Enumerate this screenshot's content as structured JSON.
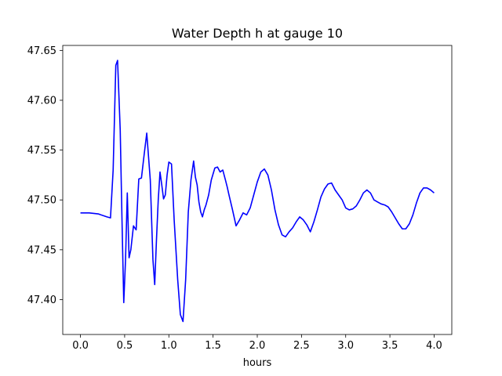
{
  "chart_data": {
    "type": "line",
    "title": "Water Depth h at gauge 10",
    "xlabel": "hours",
    "ylabel": "",
    "xlim": [
      -0.2,
      4.2
    ],
    "ylim": [
      47.365,
      47.655
    ],
    "xticks": [
      0.0,
      0.5,
      1.0,
      1.5,
      2.0,
      2.5,
      3.0,
      3.5,
      4.0
    ],
    "xtick_labels": [
      "0.0",
      "0.5",
      "1.0",
      "1.5",
      "2.0",
      "2.5",
      "3.0",
      "3.5",
      "4.0"
    ],
    "yticks": [
      47.4,
      47.45,
      47.5,
      47.55,
      47.6,
      47.65
    ],
    "ytick_labels": [
      "47.40",
      "47.45",
      "47.50",
      "47.55",
      "47.60",
      "47.65"
    ],
    "grid": false,
    "series": [
      {
        "color": "#0000ff",
        "x": [
          0.0,
          0.1,
          0.2,
          0.3,
          0.34,
          0.37,
          0.4,
          0.42,
          0.45,
          0.47,
          0.49,
          0.51,
          0.53,
          0.55,
          0.57,
          0.6,
          0.63,
          0.66,
          0.69,
          0.72,
          0.75,
          0.79,
          0.82,
          0.84,
          0.86,
          0.88,
          0.9,
          0.92,
          0.94,
          0.96,
          0.98,
          1.0,
          1.03,
          1.06,
          1.08,
          1.1,
          1.13,
          1.16,
          1.19,
          1.22,
          1.25,
          1.28,
          1.3,
          1.32,
          1.34,
          1.36,
          1.38,
          1.4,
          1.42,
          1.45,
          1.48,
          1.52,
          1.55,
          1.58,
          1.61,
          1.64,
          1.66,
          1.68,
          1.72,
          1.76,
          1.8,
          1.84,
          1.88,
          1.92,
          1.96,
          2.0,
          2.04,
          2.08,
          2.12,
          2.16,
          2.2,
          2.24,
          2.28,
          2.32,
          2.36,
          2.4,
          2.44,
          2.48,
          2.52,
          2.56,
          2.6,
          2.64,
          2.68,
          2.72,
          2.76,
          2.8,
          2.84,
          2.88,
          2.92,
          2.96,
          3.0,
          3.04,
          3.08,
          3.12,
          3.16,
          3.2,
          3.24,
          3.28,
          3.32,
          3.36,
          3.4,
          3.44,
          3.48,
          3.52,
          3.56,
          3.6,
          3.64,
          3.68,
          3.72,
          3.76,
          3.8,
          3.84,
          3.88,
          3.92,
          3.96,
          4.0
        ],
        "y": [
          47.487,
          47.487,
          47.486,
          47.483,
          47.482,
          47.53,
          47.635,
          47.64,
          47.57,
          47.48,
          47.397,
          47.44,
          47.507,
          47.442,
          47.45,
          47.474,
          47.47,
          47.521,
          47.522,
          47.545,
          47.567,
          47.52,
          47.44,
          47.415,
          47.46,
          47.5,
          47.528,
          47.515,
          47.501,
          47.505,
          47.525,
          47.538,
          47.536,
          47.48,
          47.45,
          47.42,
          47.385,
          47.378,
          47.42,
          47.488,
          47.52,
          47.539,
          47.523,
          47.515,
          47.498,
          47.488,
          47.483,
          47.49,
          47.495,
          47.505,
          47.52,
          47.532,
          47.533,
          47.528,
          47.53,
          47.52,
          47.513,
          47.505,
          47.49,
          47.474,
          47.48,
          47.487,
          47.485,
          47.492,
          47.505,
          47.518,
          47.528,
          47.531,
          47.525,
          47.51,
          47.49,
          47.475,
          47.465,
          47.463,
          47.468,
          47.472,
          47.478,
          47.483,
          47.48,
          47.475,
          47.468,
          47.478,
          47.49,
          47.503,
          47.511,
          47.516,
          47.517,
          47.51,
          47.505,
          47.5,
          47.492,
          47.49,
          47.491,
          47.494,
          47.5,
          47.507,
          47.51,
          47.507,
          47.5,
          47.498,
          47.496,
          47.495,
          47.493,
          47.488,
          47.482,
          47.476,
          47.471,
          47.471,
          47.476,
          47.485,
          47.497,
          47.507,
          47.512,
          47.512,
          47.51,
          47.507
        ]
      }
    ]
  }
}
